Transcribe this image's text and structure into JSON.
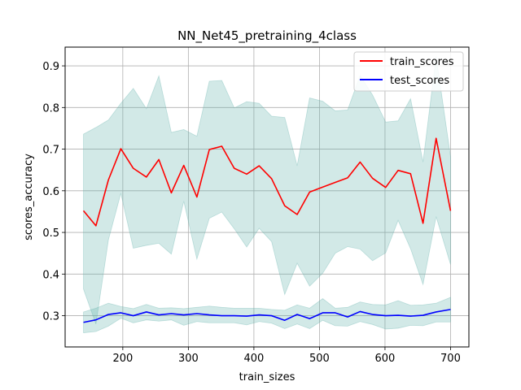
{
  "chart_data": {
    "type": "line",
    "title": "NN_Net45_pretraining_4class",
    "xlabel": "train_sizes",
    "ylabel": "scores_accuracy",
    "xlim": [
      112,
      728
    ],
    "ylim": [
      0.225,
      0.945
    ],
    "xticks": [
      200,
      300,
      400,
      500,
      600,
      700
    ],
    "yticks": [
      0.3,
      0.4,
      0.5,
      0.6,
      0.7,
      0.8,
      0.9
    ],
    "xtick_labels": [
      "200",
      "300",
      "400",
      "500",
      "600",
      "700"
    ],
    "ytick_labels": [
      "0.3",
      "0.4",
      "0.5",
      "0.6",
      "0.7",
      "0.8",
      "0.9"
    ],
    "grid": true,
    "legend_position": "top-right",
    "x": [
      140,
      159,
      178,
      197,
      216,
      236,
      255,
      274,
      293,
      313,
      332,
      351,
      370,
      389,
      408,
      427,
      447,
      466,
      485,
      505,
      524,
      543,
      562,
      581,
      601,
      620,
      639,
      658,
      678,
      700
    ],
    "series": [
      {
        "name": "train_scores",
        "color": "#ff0000",
        "values": [
          0.552,
          0.516,
          0.626,
          0.701,
          0.654,
          0.633,
          0.675,
          0.595,
          0.661,
          0.585,
          0.699,
          0.707,
          0.654,
          0.64,
          0.66,
          0.629,
          0.564,
          0.543,
          0.597,
          0.609,
          0.62,
          0.631,
          0.669,
          0.63,
          0.608,
          0.649,
          0.641,
          0.522,
          0.726,
          0.552
        ],
        "band_upper": [
          0.736,
          0.752,
          0.77,
          0.81,
          0.846,
          0.797,
          0.876,
          0.74,
          0.747,
          0.731,
          0.863,
          0.865,
          0.799,
          0.814,
          0.81,
          0.779,
          0.776,
          0.66,
          0.823,
          0.815,
          0.792,
          0.794,
          0.877,
          0.83,
          0.765,
          0.768,
          0.821,
          0.669,
          0.923,
          0.682
        ],
        "band_lower": [
          0.364,
          0.28,
          0.482,
          0.594,
          0.462,
          0.469,
          0.474,
          0.448,
          0.575,
          0.436,
          0.534,
          0.549,
          0.509,
          0.465,
          0.51,
          0.478,
          0.351,
          0.426,
          0.371,
          0.402,
          0.45,
          0.466,
          0.46,
          0.432,
          0.451,
          0.529,
          0.461,
          0.375,
          0.538,
          0.423
        ],
        "band_color": "#5fb0a8"
      },
      {
        "name": "test_scores",
        "color": "#0000ff",
        "values": [
          0.284,
          0.29,
          0.303,
          0.307,
          0.3,
          0.309,
          0.302,
          0.305,
          0.302,
          0.305,
          0.302,
          0.3,
          0.3,
          0.299,
          0.302,
          0.3,
          0.289,
          0.303,
          0.293,
          0.307,
          0.307,
          0.297,
          0.31,
          0.303,
          0.3,
          0.301,
          0.299,
          0.301,
          0.309,
          0.315
        ],
        "band_upper": [
          0.309,
          0.318,
          0.33,
          0.322,
          0.317,
          0.327,
          0.318,
          0.319,
          0.317,
          0.32,
          0.323,
          0.32,
          0.318,
          0.318,
          0.318,
          0.315,
          0.313,
          0.326,
          0.318,
          0.341,
          0.318,
          0.32,
          0.333,
          0.327,
          0.326,
          0.336,
          0.325,
          0.326,
          0.33,
          0.344
        ],
        "band_lower": [
          0.259,
          0.262,
          0.275,
          0.294,
          0.283,
          0.29,
          0.287,
          0.29,
          0.277,
          0.286,
          0.283,
          0.283,
          0.283,
          0.278,
          0.286,
          0.282,
          0.269,
          0.28,
          0.269,
          0.289,
          0.276,
          0.275,
          0.286,
          0.279,
          0.268,
          0.27,
          0.277,
          0.276,
          0.285,
          0.285
        ],
        "band_color": "#5fb0a8"
      }
    ]
  }
}
